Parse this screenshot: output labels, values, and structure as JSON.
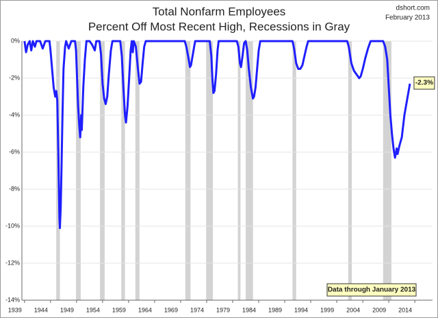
{
  "chart_data": {
    "type": "line",
    "title": "Total Nonfarm Employees",
    "subtitle": "Percent Off Most Recent High, Recessions in Gray",
    "source": "dshort.com",
    "date": "February 2013",
    "end_label": "-2.3%",
    "note": "Data through January 2013",
    "color": "#1f1fff",
    "recession_color": "#d3d3d3",
    "grid": true,
    "xlim": [
      1938.5,
      2017.4
    ],
    "ylim": [
      -14,
      0
    ],
    "xticks": [
      1939,
      1944,
      1949,
      1954,
      1959,
      1964,
      1969,
      1974,
      1979,
      1984,
      1989,
      1994,
      1999,
      2004,
      2009,
      2014
    ],
    "yticks": [
      {
        "value": 0,
        "label": "0%"
      },
      {
        "value": -2,
        "label": "-2%"
      },
      {
        "value": -4,
        "label": "-4%"
      },
      {
        "value": -6,
        "label": "-6%"
      },
      {
        "value": -8,
        "label": "-8%"
      },
      {
        "value": -10,
        "label": "-10%"
      },
      {
        "value": -12,
        "label": "-12%"
      },
      {
        "value": -14,
        "label": "-14%"
      }
    ],
    "recessions": [
      {
        "start": 1945.1,
        "end": 1945.8
      },
      {
        "start": 1948.9,
        "end": 1949.8
      },
      {
        "start": 1953.5,
        "end": 1954.4
      },
      {
        "start": 1957.6,
        "end": 1958.3
      },
      {
        "start": 1960.3,
        "end": 1961.1
      },
      {
        "start": 1969.9,
        "end": 1970.9
      },
      {
        "start": 1973.9,
        "end": 1975.2
      },
      {
        "start": 1980.0,
        "end": 1980.5
      },
      {
        "start": 1981.5,
        "end": 1982.9
      },
      {
        "start": 1990.5,
        "end": 1991.2
      },
      {
        "start": 2001.2,
        "end": 2001.9
      },
      {
        "start": 2007.9,
        "end": 2009.5
      }
    ],
    "x": [
      1939.0,
      1939.3,
      1939.6,
      1940.0,
      1940.3,
      1940.6,
      1941.0,
      1941.3,
      1942.0,
      1942.5,
      1943.0,
      1943.8,
      1944.0,
      1944.3,
      1944.6,
      1944.9,
      1945.1,
      1945.3,
      1945.5,
      1945.7,
      1945.8,
      1945.95,
      1946.1,
      1946.3,
      1946.5,
      1946.8,
      1947.0,
      1947.5,
      1948.0,
      1948.7,
      1948.9,
      1949.1,
      1949.3,
      1949.5,
      1949.7,
      1949.9,
      1950.0,
      1950.3,
      1950.6,
      1950.9,
      1951.5,
      1952.0,
      1952.5,
      1952.8,
      1953.4,
      1953.7,
      1954.0,
      1954.3,
      1954.6,
      1954.9,
      1955.2,
      1955.6,
      1955.9,
      1957.4,
      1957.7,
      1958.0,
      1958.3,
      1958.5,
      1958.8,
      1959.1,
      1959.4,
      1959.6,
      1959.8,
      1960.0,
      1960.4,
      1960.8,
      1961.1,
      1961.4,
      1961.7,
      1962.0,
      1962.3,
      1969.8,
      1970.1,
      1970.5,
      1970.8,
      1971.0,
      1971.3,
      1971.6,
      1971.8,
      1974.6,
      1974.9,
      1975.1,
      1975.3,
      1975.5,
      1975.8,
      1976.1,
      1976.3,
      1979.8,
      1980.1,
      1980.4,
      1980.6,
      1980.9,
      1981.2,
      1981.5,
      1981.8,
      1982.1,
      1982.5,
      1982.9,
      1983.1,
      1983.4,
      1983.7,
      1984.0,
      1984.3,
      1990.5,
      1990.8,
      1991.2,
      1991.6,
      1992.0,
      1992.4,
      1992.8,
      1993.2,
      1993.5,
      2001.0,
      2001.3,
      2001.8,
      2002.3,
      2002.8,
      2003.3,
      2003.6,
      2004.0,
      2004.5,
      2005.0,
      2005.5,
      2007.9,
      2008.3,
      2008.7,
      2009.0,
      2009.3,
      2009.6,
      2009.9,
      2010.2,
      2010.4,
      2010.5,
      2010.7,
      2011.0,
      2011.5,
      2012.0,
      2012.5,
      2013.0,
      2013.05
    ],
    "values": [
      0,
      -0.6,
      -0.2,
      0,
      -0.5,
      0,
      -0.3,
      0,
      0,
      -0.4,
      0,
      0,
      -0.5,
      -1.5,
      -2.5,
      -3.0,
      -2.7,
      -3.2,
      -6,
      -9.5,
      -10.1,
      -9,
      -7,
      -4,
      -1.5,
      -0.3,
      0,
      -0.4,
      0,
      0,
      -0.5,
      -2,
      -3.5,
      -4.5,
      -5.2,
      -4,
      -4.8,
      -2.5,
      -1,
      0,
      0,
      -0.2,
      -0.5,
      0,
      0,
      -0.7,
      -2.3,
      -3.1,
      -3.4,
      -3.0,
      -1.8,
      -0.5,
      0,
      0,
      -0.8,
      -2.5,
      -4.0,
      -4.4,
      -3.5,
      -2,
      -0.5,
      0,
      -0.6,
      0,
      -0.3,
      -1.5,
      -2.3,
      -2.2,
      -1.2,
      -0.3,
      0,
      0,
      -0.3,
      -0.9,
      -1.4,
      -1.3,
      -0.8,
      -0.3,
      0,
      0,
      -0.8,
      -2.0,
      -2.8,
      -2.7,
      -1.8,
      -0.5,
      0,
      0,
      -0.3,
      -1.2,
      -1.4,
      -0.8,
      -0.1,
      0,
      -0.5,
      -1.5,
      -2.5,
      -3.1,
      -3.0,
      -2.5,
      -1.5,
      -0.5,
      0,
      0,
      -0.4,
      -1.2,
      -1.5,
      -1.5,
      -1.3,
      -0.8,
      -0.3,
      0,
      0,
      -0.3,
      -1.2,
      -1.6,
      -1.8,
      -2.0,
      -1.9,
      -1.5,
      -0.9,
      -0.4,
      0,
      0,
      -0.3,
      -1.0,
      -2.5,
      -4.0,
      -5.0,
      -5.8,
      -6.3,
      -6.0,
      -5.8,
      -6.1,
      -5.7,
      -5.2,
      -4.0,
      -3.2,
      -2.4,
      -2.3
    ]
  }
}
